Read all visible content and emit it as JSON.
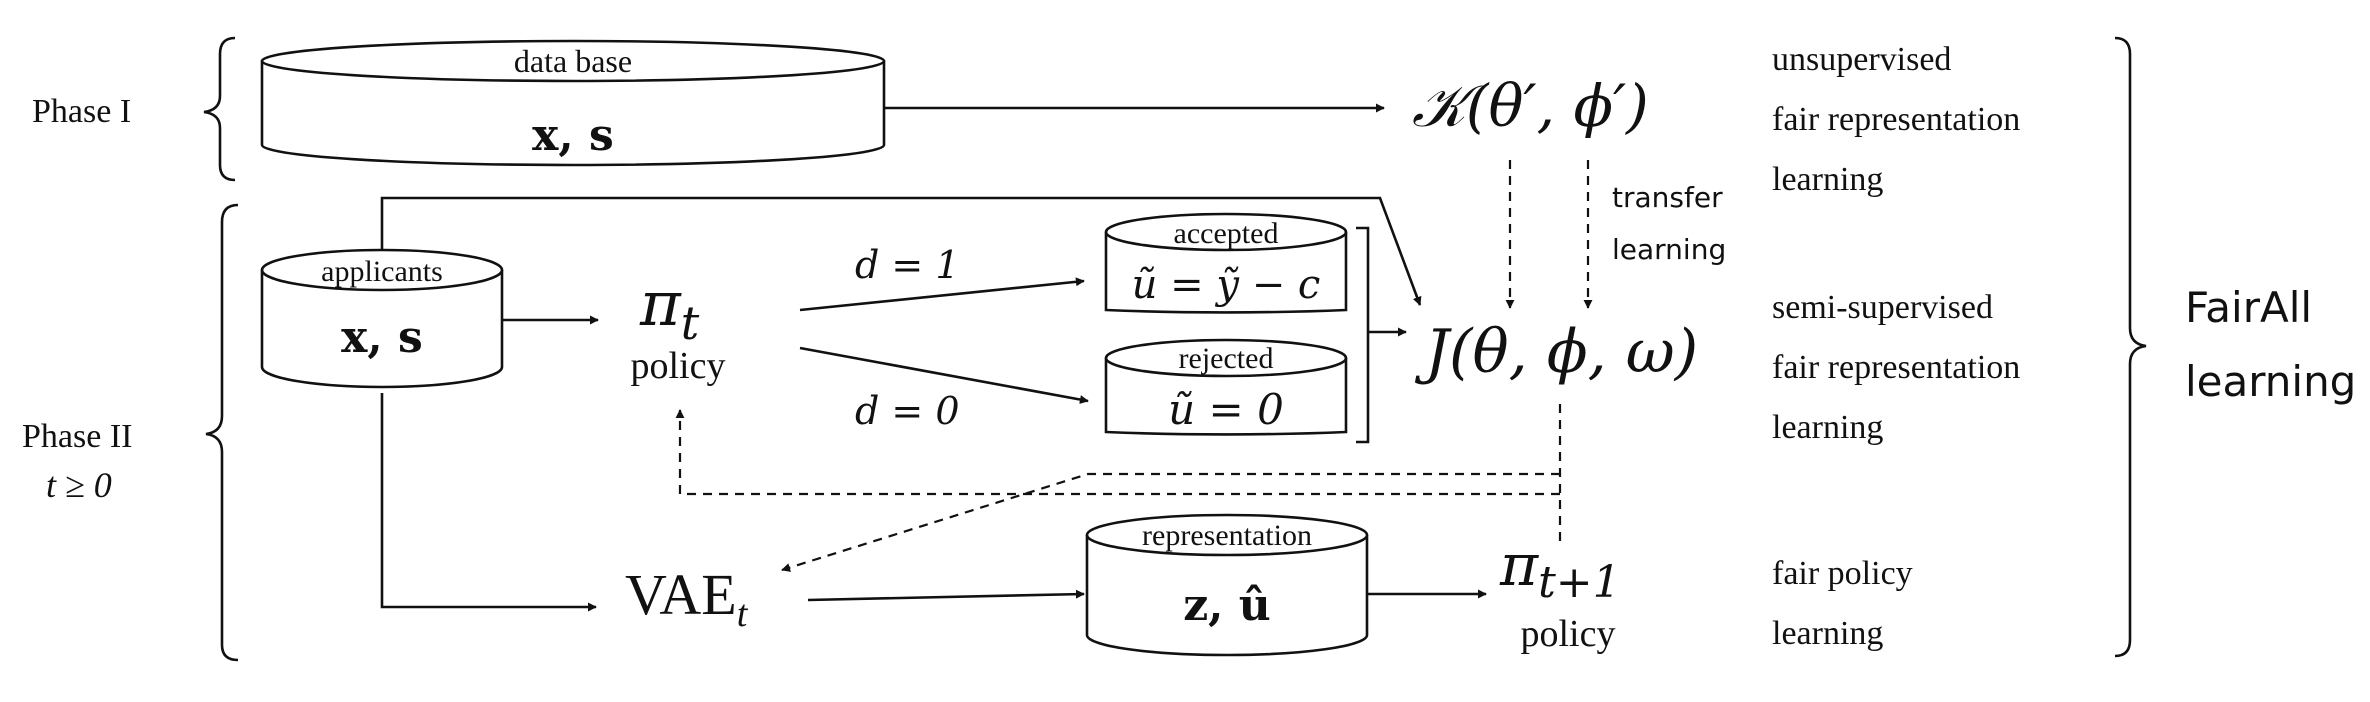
{
  "phases": {
    "phase1": "Phase I",
    "phase2": "Phase II",
    "phase2_sub": "t ≥ 0"
  },
  "database": {
    "title": "data base",
    "content": "x, s"
  },
  "applicants": {
    "title": "applicants",
    "content": "x, s"
  },
  "accepted": {
    "title": "accepted",
    "content": "ũ = ỹ − c"
  },
  "rejected": {
    "title": "rejected",
    "content": "ũ = 0"
  },
  "representation": {
    "title": "representation",
    "content": "z, û"
  },
  "policy_t": {
    "symbol": "π",
    "subscript": "t",
    "caption": "policy"
  },
  "policy_t1": {
    "symbol": "π",
    "subscript": "t+1",
    "caption": "policy"
  },
  "vae": {
    "label": "VAE",
    "subscript": "t"
  },
  "decisions": {
    "d1": "d = 1",
    "d0": "d = 0"
  },
  "objectives": {
    "K": "𝒦(θ′, ϕ′)",
    "J": "J(θ, ϕ, ω)"
  },
  "transfer": {
    "line1": "transfer",
    "line2": "learning"
  },
  "right_labels": {
    "unsupervised": [
      "unsupervised",
      "fair representation",
      "learning"
    ],
    "semi_supervised": [
      "semi-supervised",
      "fair representation",
      "learning"
    ],
    "policy": [
      "fair policy",
      "learning"
    ]
  },
  "fairall": {
    "line1": "FairAll",
    "line2": "learning"
  }
}
